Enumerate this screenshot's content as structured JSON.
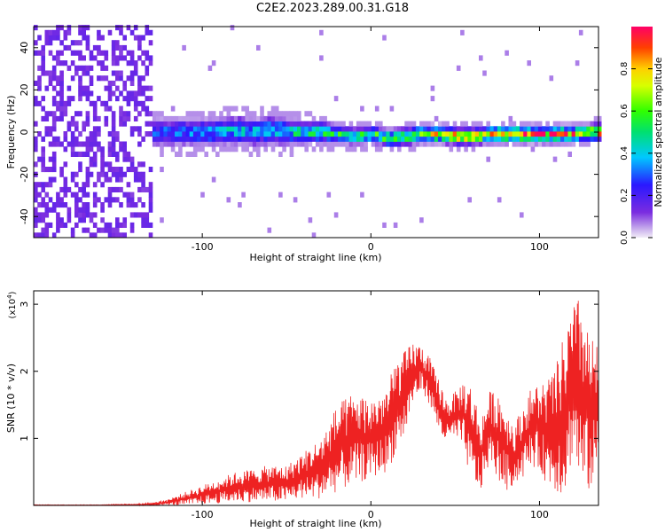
{
  "figure": {
    "title": "C2E2.2023.289.00.31.G18"
  },
  "colors": {
    "snr_line": "#ee2222",
    "axis": "#000000",
    "background_spectrogram": "#ffffff"
  },
  "chart_data": [
    {
      "type": "heatmap",
      "title": "",
      "xlabel": "Height of straight line (km)",
      "ylabel": "Frequency (Hz)",
      "xlim": [
        -200,
        135
      ],
      "ylim": [
        -50,
        50
      ],
      "xticks": [
        -100,
        0,
        100
      ],
      "xtick_labels": [
        "-100",
        "0",
        "100"
      ],
      "yticks": [
        -40,
        -20,
        0,
        20,
        40
      ],
      "ytick_labels": [
        "-40",
        "-20",
        "0",
        "20",
        "40"
      ],
      "grid": false,
      "colorbar": {
        "label": "Normalized spectral amplitude",
        "range": [
          0,
          1
        ],
        "ticks": [
          0.0,
          0.2,
          0.4,
          0.6,
          0.8
        ],
        "tick_labels": [
          "0.0",
          "0.2",
          "0.4",
          "0.6",
          "0.8"
        ],
        "colormap": "rainbow (violet to red)"
      },
      "ridge": {
        "description": "narrow high-amplitude band near 0 Hz",
        "x": [
          -130,
          -110,
          -90,
          -80,
          -70,
          -60,
          -50,
          -40,
          -30,
          -20,
          -10,
          0,
          10,
          20,
          30,
          40,
          50,
          60,
          70,
          80,
          90,
          100,
          110,
          120,
          130
        ],
        "center_hz": [
          0,
          0,
          0,
          1,
          0,
          1,
          0,
          0,
          0,
          -1,
          -2,
          -1,
          -3,
          -2,
          -1,
          -1,
          -2,
          -2,
          -1,
          -1,
          -1,
          -1,
          -1,
          -1,
          0
        ],
        "amplitude": [
          0.3,
          0.35,
          0.4,
          0.45,
          0.4,
          0.45,
          0.45,
          0.5,
          0.5,
          0.55,
          0.55,
          0.6,
          0.7,
          0.7,
          0.8,
          0.8,
          0.85,
          0.8,
          0.85,
          0.85,
          0.9,
          0.85,
          0.9,
          0.9,
          0.85
        ],
        "halfwidth_hz": [
          5,
          5,
          5,
          5,
          5,
          5,
          5,
          4,
          4,
          3,
          3,
          3,
          3,
          3,
          3,
          3,
          3,
          3,
          3,
          3,
          3,
          3,
          3,
          3,
          3
        ]
      },
      "noise_region": {
        "x_range": [
          -200,
          -130
        ],
        "y_range": [
          -50,
          50
        ],
        "amplitude": 0.1
      }
    },
    {
      "type": "line",
      "title": "",
      "xlabel": "Height of straight line (km)",
      "ylabel": "SNR (10 * v/v)",
      "y_multiplier": "(x10",
      "y_multiplier_exp": "4",
      "xlim": [
        -200,
        135
      ],
      "ylim": [
        0,
        3.2
      ],
      "xticks": [
        -100,
        0,
        100
      ],
      "xtick_labels": [
        "-100",
        "0",
        "100"
      ],
      "yticks": [
        1,
        2,
        3
      ],
      "ytick_labels": [
        "1",
        "2",
        "3"
      ],
      "grid": false,
      "series": [
        {
          "x": [
            -200,
            -190,
            -180,
            -170,
            -160,
            -150,
            -140,
            -130,
            -120,
            -110,
            -100,
            -90,
            -80,
            -70,
            -60,
            -50,
            -40,
            -30,
            -20,
            -10,
            0,
            10,
            15,
            20,
            25,
            30,
            35,
            40,
            45,
            50,
            55,
            60,
            65,
            70,
            75,
            80,
            85,
            90,
            95,
            100,
            105,
            110,
            115,
            120,
            125,
            130,
            135
          ],
          "upper": [
            0.01,
            0.01,
            0.01,
            0.01,
            0.01,
            0.02,
            0.02,
            0.04,
            0.1,
            0.2,
            0.3,
            0.4,
            0.5,
            0.55,
            0.6,
            0.6,
            0.8,
            1.0,
            1.5,
            1.7,
            1.6,
            1.8,
            2.2,
            2.3,
            2.45,
            2.4,
            2.2,
            1.9,
            1.6,
            1.7,
            1.9,
            1.8,
            1.3,
            1.7,
            1.75,
            1.5,
            1.2,
            1.5,
            1.75,
            1.85,
            1.9,
            2.1,
            2.6,
            3.0,
            3.15,
            2.5,
            2.4
          ],
          "lower": [
            0.0,
            0.0,
            0.0,
            0.0,
            0.0,
            0.0,
            0.0,
            0.0,
            0.0,
            0.0,
            0.02,
            0.03,
            0.05,
            0.05,
            0.05,
            0.05,
            0.1,
            0.1,
            0.2,
            0.3,
            0.4,
            0.5,
            0.8,
            1.0,
            1.5,
            1.7,
            1.5,
            1.1,
            0.9,
            1.0,
            0.8,
            0.3,
            0.2,
            0.6,
            0.4,
            0.2,
            0.3,
            0.4,
            0.6,
            0.5,
            0.3,
            0.2,
            0.1,
            0.8,
            0.1,
            0.2,
            0.5
          ]
        }
      ]
    }
  ]
}
